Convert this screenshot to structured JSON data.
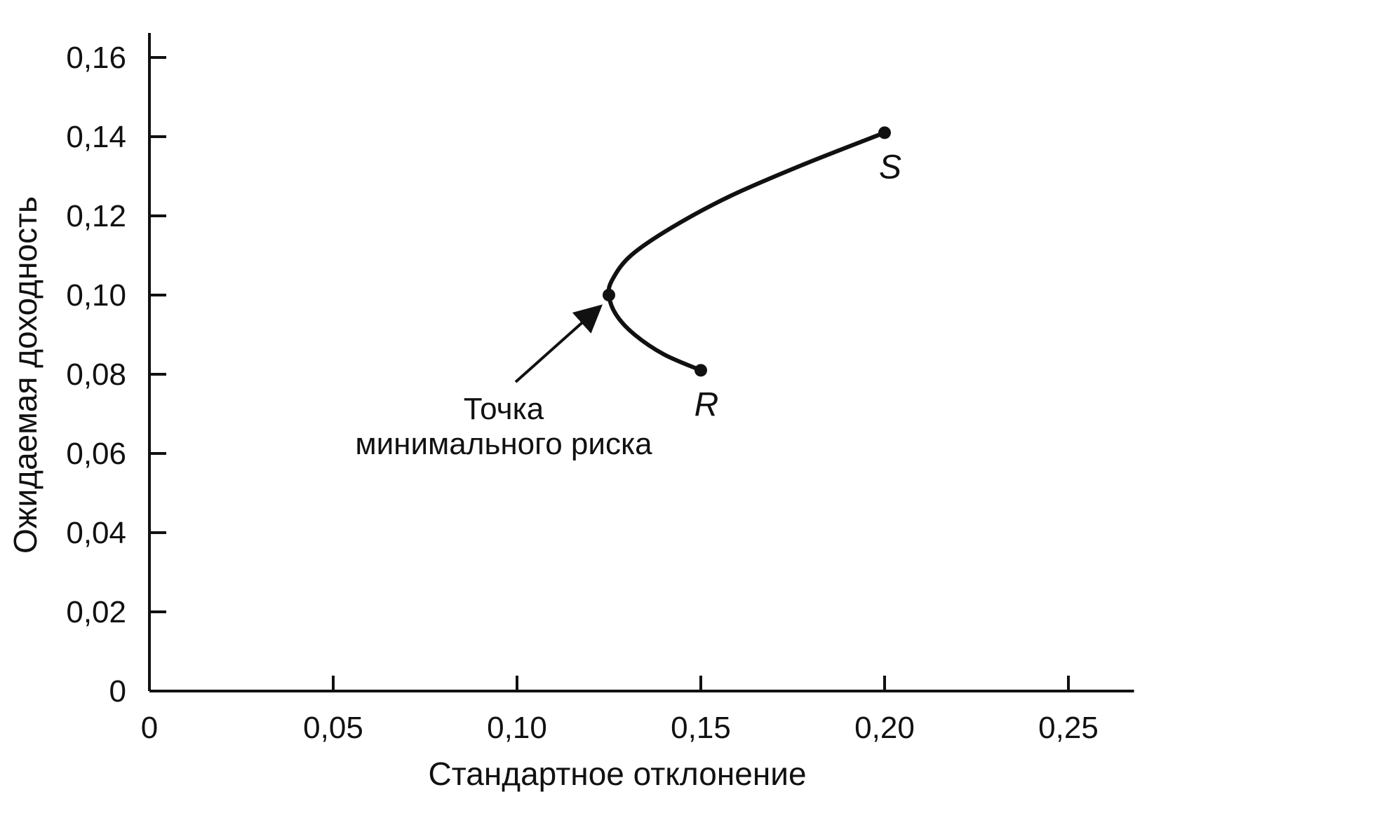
{
  "chart_data": {
    "type": "line",
    "xlabel": "Стандартное отклонение",
    "ylabel": "Ожидаемая доходность",
    "xlim": [
      0,
      0.265
    ],
    "ylim": [
      0,
      0.16
    ],
    "x_ticks": [
      {
        "value": 0,
        "label": "0"
      },
      {
        "value": 0.05,
        "label": "0,05"
      },
      {
        "value": 0.1,
        "label": "0,10"
      },
      {
        "value": 0.15,
        "label": "0,15"
      },
      {
        "value": 0.2,
        "label": "0,20"
      },
      {
        "value": 0.25,
        "label": "0,25"
      }
    ],
    "y_ticks": [
      {
        "value": 0,
        "label": "0"
      },
      {
        "value": 0.02,
        "label": "0,02"
      },
      {
        "value": 0.04,
        "label": "0,04"
      },
      {
        "value": 0.06,
        "label": "0,06"
      },
      {
        "value": 0.08,
        "label": "0,08"
      },
      {
        "value": 0.1,
        "label": "0,10"
      },
      {
        "value": 0.12,
        "label": "0,12"
      },
      {
        "value": 0.14,
        "label": "0,14"
      },
      {
        "value": 0.16,
        "label": "0,16"
      }
    ],
    "grid": false,
    "series": [
      {
        "points": [
          {
            "x": 0.15,
            "y": 0.081
          },
          {
            "x": 0.14,
            "y": 0.085
          },
          {
            "x": 0.132,
            "y": 0.09
          },
          {
            "x": 0.127,
            "y": 0.095
          },
          {
            "x": 0.125,
            "y": 0.1
          },
          {
            "x": 0.126,
            "y": 0.104
          },
          {
            "x": 0.131,
            "y": 0.11
          },
          {
            "x": 0.142,
            "y": 0.117
          },
          {
            "x": 0.158,
            "y": 0.125
          },
          {
            "x": 0.178,
            "y": 0.133
          },
          {
            "x": 0.2,
            "y": 0.141
          }
        ]
      }
    ],
    "markers": [
      {
        "label": "R",
        "x": 0.15,
        "y": 0.081
      },
      {
        "label": "S",
        "x": 0.2,
        "y": 0.141
      },
      {
        "label": "",
        "x": 0.125,
        "y": 0.1
      }
    ],
    "annotation": {
      "lines": [
        "Точка",
        "минимального риска"
      ],
      "target": {
        "x": 0.125,
        "y": 0.1
      }
    }
  }
}
